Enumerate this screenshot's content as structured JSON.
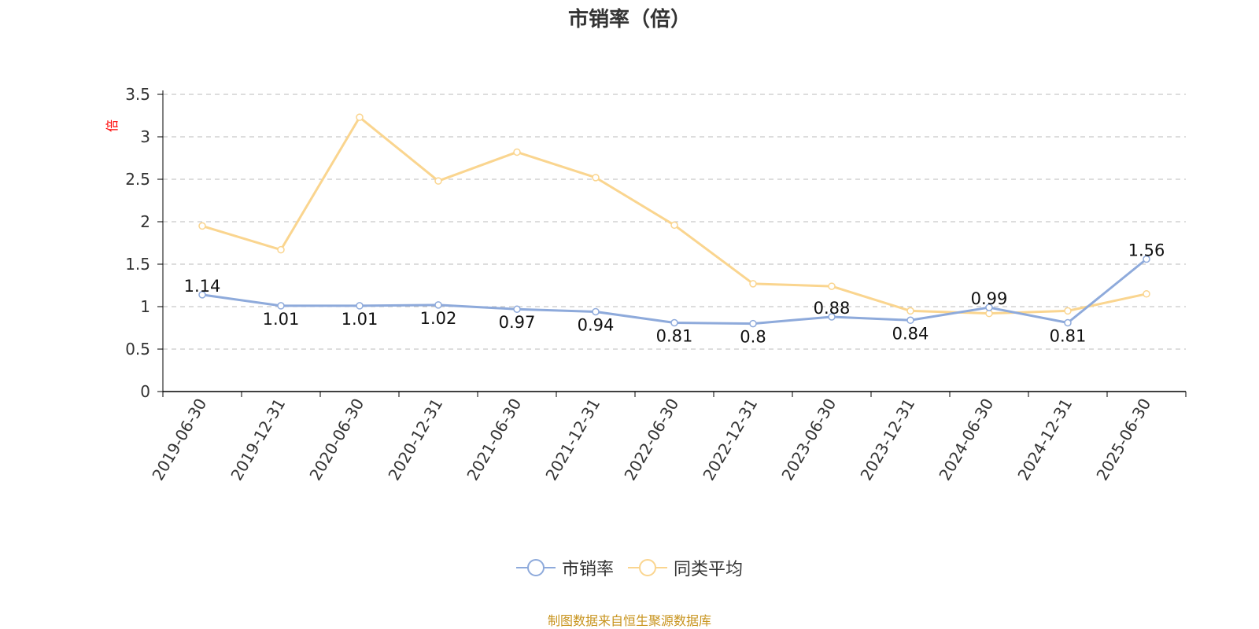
{
  "colors": {
    "series_1": "#8eaadb",
    "series_2": "#fad58f",
    "axis": "#000000",
    "grid": "#bbbbbb",
    "source": "#c8941e",
    "unit": "#ff0000"
  },
  "chart_data": {
    "type": "line",
    "title": "市销率（倍）",
    "ylabel": "倍",
    "x": [
      "2019-06-30",
      "2019-12-31",
      "2020-06-30",
      "2020-12-31",
      "2021-06-30",
      "2021-12-31",
      "2022-06-30",
      "2022-12-31",
      "2023-06-30",
      "2023-12-31",
      "2024-06-30",
      "2024-12-31",
      "2025-06-30"
    ],
    "ylim": [
      0,
      3.5
    ],
    "yticks": [
      "0",
      "0.5",
      "1",
      "1.5",
      "2",
      "2.5",
      "3",
      "3.5"
    ],
    "grid": true,
    "legend_position": "bottom-center",
    "series": [
      {
        "name": "市销率",
        "color": "#8eaadb",
        "show_labels": true,
        "values": [
          1.14,
          1.01,
          1.01,
          1.02,
          0.97,
          0.94,
          0.81,
          0.8,
          0.88,
          0.84,
          0.99,
          0.81,
          1.56
        ]
      },
      {
        "name": "同类平均",
        "color": "#fad58f",
        "show_labels": false,
        "values": [
          1.95,
          1.67,
          3.23,
          2.48,
          2.82,
          2.52,
          1.96,
          1.27,
          1.24,
          0.95,
          0.92,
          0.95,
          1.15
        ]
      }
    ]
  },
  "legend": {
    "items": [
      "市销率",
      "同类平均"
    ]
  },
  "source_note": "制图数据来自恒生聚源数据库"
}
